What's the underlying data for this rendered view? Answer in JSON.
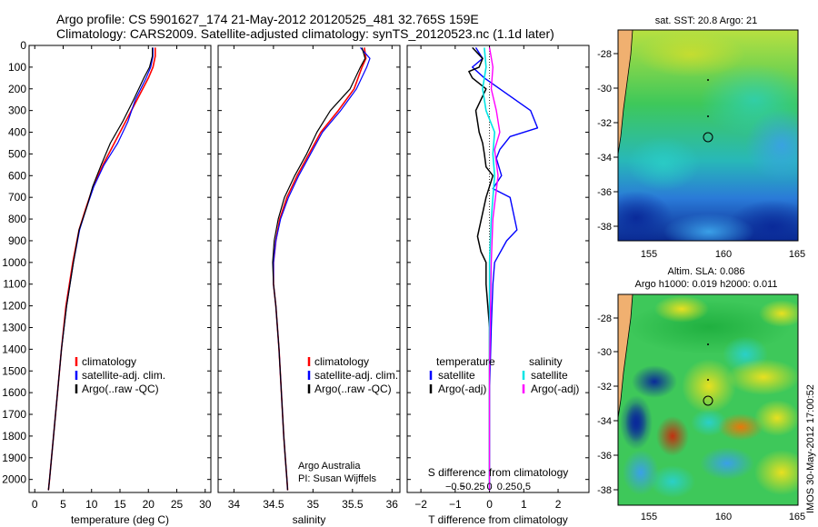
{
  "header": {
    "line1": "Argo profile: CS 5901627_174 21-May-2012 20120525_481 32.765S 159E",
    "line2": "Climatology: CARS2009. Satellite-adjusted climatology: synTS_20120523.nc (1.1d later)"
  },
  "colors": {
    "climatology": "#ff0000",
    "satellite": "#0000ff",
    "argo": "#000000",
    "satellite_s": "#00e5e5",
    "argo_s": "#ff00ff"
  },
  "chart_data": [
    {
      "type": "line",
      "panel": "temperature",
      "xlabel": "temperature (deg C)",
      "ylabel": "",
      "xlim": [
        -1,
        31
      ],
      "ylim": [
        2060,
        0
      ],
      "xticks": [
        0,
        5,
        10,
        15,
        20,
        25,
        30
      ],
      "yticks": [
        0,
        100,
        200,
        300,
        400,
        500,
        600,
        700,
        800,
        900,
        1000,
        1100,
        1200,
        1300,
        1400,
        1500,
        1600,
        1700,
        1800,
        1900,
        2000
      ],
      "legend": {
        "placement": "lower-middle",
        "entries": [
          "climatology",
          "satellite-adj. clim.",
          "Argo(..raw -QC)"
        ]
      },
      "series": [
        {
          "name": "climatology",
          "color": "#ff0000",
          "width": 1.6,
          "x": [
            21.2,
            21.2,
            20.8,
            20.0,
            18.0,
            16.0,
            14.0,
            12.0,
            10.3,
            9.0,
            7.8,
            6.7,
            5.5,
            4.7,
            4.0,
            3.3,
            2.6,
            2.4
          ],
          "y": [
            10,
            50,
            100,
            150,
            250,
            350,
            450,
            550,
            650,
            750,
            850,
            1000,
            1200,
            1400,
            1600,
            1800,
            2000,
            2050
          ]
        },
        {
          "name": "satellite-adj. clim.",
          "color": "#0000ff",
          "width": 1.2,
          "x": [
            20.8,
            20.8,
            20.4,
            19.6,
            17.7,
            16.4,
            14.6,
            12.2,
            10.4,
            9.1,
            7.9,
            6.8,
            5.6,
            4.7,
            4.0,
            3.3,
            2.6,
            2.4
          ],
          "y": [
            10,
            50,
            100,
            150,
            250,
            350,
            450,
            550,
            650,
            750,
            850,
            1000,
            1200,
            1400,
            1600,
            1800,
            2000,
            2050
          ]
        },
        {
          "name": "Argo(..raw -QC)",
          "color": "#000000",
          "width": 1.2,
          "x": [
            20.7,
            20.7,
            20.2,
            19.2,
            17.4,
            15.5,
            13.3,
            11.7,
            10.2,
            9.1,
            7.8,
            6.8,
            5.6,
            4.7,
            4.0,
            3.3,
            2.6,
            2.4
          ],
          "y": [
            10,
            50,
            100,
            150,
            250,
            350,
            450,
            550,
            650,
            750,
            850,
            1000,
            1200,
            1400,
            1600,
            1800,
            2000,
            2050
          ]
        }
      ]
    },
    {
      "type": "line",
      "panel": "salinity",
      "xlabel": "salinity",
      "ylabel": "",
      "xlim": [
        33.8,
        36.1
      ],
      "ylim": [
        2060,
        0
      ],
      "xticks": [
        34,
        34.5,
        35,
        35.5,
        36
      ],
      "xtick_labels": [
        "34",
        "34.5",
        "35",
        "35.5",
        "36"
      ],
      "legend": {
        "placement": "lower-middle",
        "entries": [
          "climatology",
          "satellite-adj. clim.",
          "Argo(..raw -QC)"
        ]
      },
      "annotation": [
        "Argo Australia",
        "PI: Susan Wijffels"
      ],
      "series": [
        {
          "name": "climatology",
          "color": "#ff0000",
          "width": 1.6,
          "x": [
            35.65,
            35.67,
            35.62,
            35.52,
            35.32,
            35.1,
            34.95,
            34.8,
            34.67,
            34.58,
            34.53,
            34.5,
            34.5,
            34.53,
            34.57,
            34.6,
            34.63,
            34.65,
            34.67,
            34.68
          ],
          "y": [
            10,
            60,
            100,
            200,
            300,
            400,
            500,
            600,
            700,
            800,
            900,
            1000,
            1100,
            1200,
            1400,
            1600,
            1800,
            1900,
            2000,
            2050
          ]
        },
        {
          "name": "satellite-adj. clim.",
          "color": "#0000ff",
          "width": 1.2,
          "x": [
            35.6,
            35.72,
            35.68,
            35.55,
            35.35,
            35.12,
            34.97,
            34.82,
            34.69,
            34.59,
            34.53,
            34.5,
            34.5,
            34.53,
            34.57,
            34.6,
            34.63,
            34.65,
            34.67,
            34.68
          ],
          "y": [
            10,
            60,
            100,
            200,
            300,
            400,
            500,
            600,
            700,
            800,
            900,
            1000,
            1100,
            1200,
            1400,
            1600,
            1800,
            1900,
            2000,
            2050
          ]
        },
        {
          "name": "Argo(..raw -QC)",
          "color": "#000000",
          "width": 1.2,
          "x": [
            35.62,
            35.66,
            35.6,
            35.47,
            35.22,
            35.05,
            34.92,
            34.77,
            34.64,
            34.56,
            34.51,
            34.49,
            34.5,
            34.53,
            34.57,
            34.6,
            34.63,
            34.65,
            34.67,
            34.68
          ],
          "y": [
            10,
            60,
            100,
            200,
            300,
            400,
            500,
            600,
            700,
            800,
            900,
            1000,
            1100,
            1200,
            1400,
            1600,
            1800,
            1900,
            2000,
            2050
          ]
        }
      ]
    },
    {
      "type": "line",
      "panel": "difference",
      "xlabel": "T difference from climatology",
      "xlabel_top": "S difference from climatology",
      "xlim": [
        -2.4,
        2.9
      ],
      "ylim": [
        2060,
        0
      ],
      "xticks": [
        -2,
        -1,
        0,
        1,
        2
      ],
      "xtick_labels": [
        "−2",
        "−1",
        "0",
        "1",
        "2"
      ],
      "sticks": [
        -0.5,
        -0.25,
        0,
        0.25,
        0.5
      ],
      "stick_labels": [
        "−0.5",
        "−0.25",
        "0",
        "0.25",
        "0.5"
      ],
      "legend": {
        "placement": "lower-middle",
        "left_title": "temperature",
        "right_title": "salinity",
        "entries": [
          "satellite",
          "Argo(-adj)",
          "satellite",
          "Argo(-adj)"
        ]
      },
      "series": [
        {
          "name": "satellite",
          "color": "#0000ff",
          "width": 1.4,
          "x": [
            -0.4,
            -0.2,
            -0.5,
            -0.15,
            0.3,
            1.2,
            1.4,
            0.6,
            0.3,
            0.2,
            0.35,
            0.1,
            0.6,
            0.8,
            0.5,
            0.15,
            0.1,
            0.05,
            0.0,
            0.0,
            0.0
          ],
          "y": [
            10,
            60,
            100,
            150,
            200,
            300,
            380,
            420,
            480,
            520,
            600,
            660,
            700,
            850,
            900,
            1000,
            1100,
            1300,
            1600,
            1900,
            2050
          ]
        },
        {
          "name": "Argo(-adj)",
          "color": "#000000",
          "width": 1.5,
          "x": [
            -0.5,
            -0.2,
            -0.3,
            -0.6,
            -0.5,
            -0.1,
            -0.4,
            -0.3,
            -0.2,
            -0.15,
            -0.1,
            0.1,
            -0.1,
            -0.35,
            -0.25,
            -0.1,
            -0.1,
            0.0,
            0.0,
            0.0,
            0.0
          ],
          "y": [
            10,
            60,
            100,
            120,
            150,
            200,
            300,
            400,
            450,
            500,
            560,
            600,
            700,
            880,
            950,
            1000,
            1100,
            1300,
            1600,
            1900,
            2050
          ]
        },
        {
          "name": "satellite",
          "color": "#00e5e5",
          "width": 1.6,
          "x": [
            -0.15,
            -0.1,
            -0.2,
            -0.1,
            0.15,
            0.1,
            0.15,
            0.05,
            0.0,
            0.0,
            0.0
          ],
          "y": [
            10,
            100,
            200,
            300,
            400,
            500,
            600,
            800,
            1000,
            1500,
            2050
          ]
        },
        {
          "name": "Argo(-adj)",
          "color": "#ff00ff",
          "width": 1.4,
          "x": [
            0.0,
            0.1,
            0.05,
            0.2,
            0.3,
            0.15,
            0.25,
            0.1,
            0.05,
            0.0,
            0.0
          ],
          "y": [
            10,
            100,
            200,
            300,
            400,
            480,
            600,
            800,
            1000,
            1500,
            2050
          ]
        }
      ]
    }
  ],
  "maps": {
    "sst": {
      "title": "sat. SST: 20.8 Argo: 21",
      "xticks": [
        "155",
        "160",
        "165"
      ],
      "yticks": [
        "-28",
        "-30",
        "-32",
        "-34",
        "-36",
        "-38"
      ]
    },
    "sla": {
      "title1": "Altim. SLA: 0.086",
      "title2": "Argo h1000: 0.019 h2000: 0.011",
      "xticks": [
        "155",
        "160",
        "165"
      ],
      "yticks": [
        "-28",
        "-30",
        "-32",
        "-34",
        "-36",
        "-38"
      ]
    }
  },
  "footer_stamp": "IMOS 30-May-2012 17:00:52"
}
